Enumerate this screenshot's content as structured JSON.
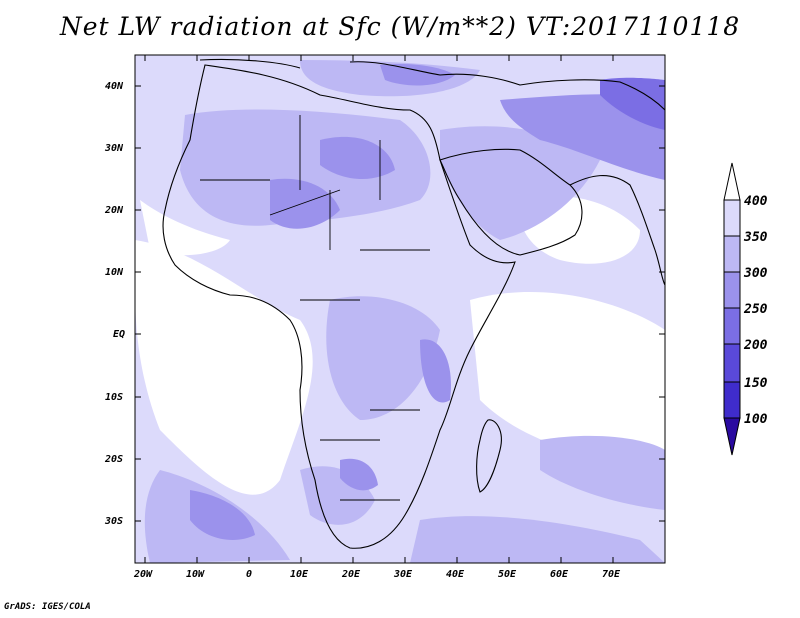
{
  "title": "Net LW radiation at Sfc (W/m**2) VT:2017110118",
  "footer": "GrADS: IGES/COLA",
  "map": {
    "lon_range": [
      -22,
      80
    ],
    "lat_range": [
      -37,
      45
    ],
    "lon_ticks": [
      "20W",
      "10W",
      "0",
      "10E",
      "20E",
      "30E",
      "40E",
      "50E",
      "60E",
      "70E"
    ],
    "lat_ticks": [
      "40N",
      "30N",
      "20N",
      "10N",
      "EQ",
      "10S",
      "20S",
      "30S"
    ]
  },
  "colorbar": {
    "levels": [
      "100",
      "150",
      "200",
      "250",
      "300",
      "350",
      "400"
    ],
    "colors": [
      "#2a0aa0",
      "#3f2ccc",
      "#5a49d9",
      "#7b6ee4",
      "#9b92ec",
      "#bdb8f4",
      "#dcdafb",
      "#ffffff"
    ]
  }
}
